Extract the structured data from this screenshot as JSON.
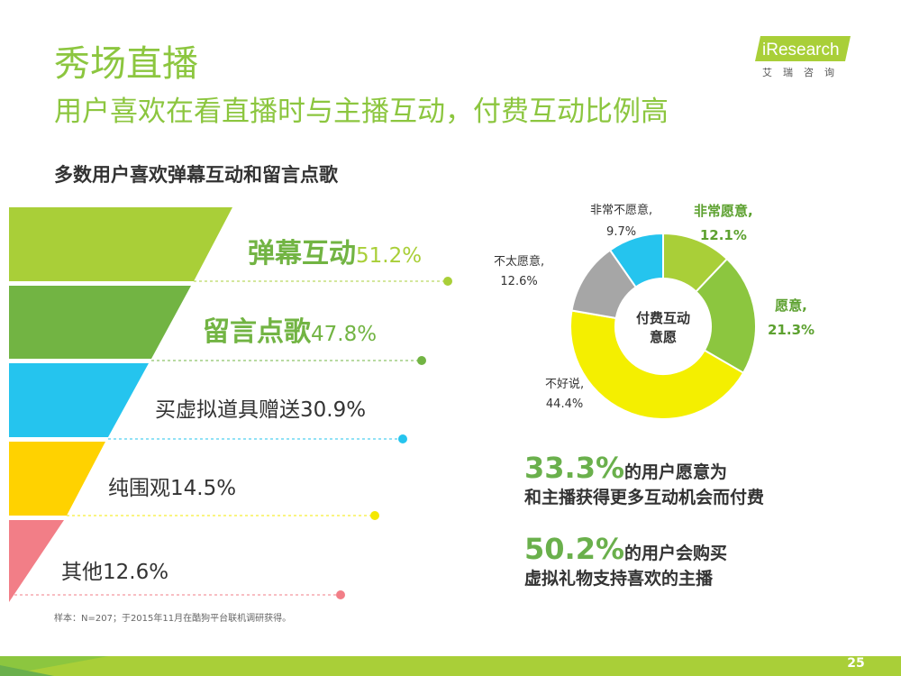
{
  "header": {
    "title": "秀场直播",
    "subtitle": "用户喜欢在看直播时与主播互动，付费互动比例高"
  },
  "logo": {
    "brand": "iResearch",
    "sub": "艾瑞咨询"
  },
  "left_heading": "多数用户喜欢弹幕互动和留言点歌",
  "funnel": [
    {
      "name": "弹幕互动",
      "value": "51.2%",
      "color": "#a9cf38",
      "dot": "#a9cf38"
    },
    {
      "name": "留言点歌",
      "value": "47.8%",
      "color": "#72b443",
      "dot": "#72b443"
    },
    {
      "name": "买虚拟道具赠送",
      "value": "30.9%",
      "color": "#25c4ee",
      "dot": "#25c4ee"
    },
    {
      "name": "纯围观",
      "value": "14.5%",
      "color": "#ffd200",
      "dot": "#f4e800"
    },
    {
      "name": "其他",
      "value": "12.6%",
      "color": "#f27e87",
      "dot": "#f27e87"
    }
  ],
  "donut": {
    "center_line1": "付费互动",
    "center_line2": "意愿",
    "slices": [
      {
        "name": "非常愿意,",
        "value": "12.1%",
        "color": "#a9cf38"
      },
      {
        "name": "愿意,",
        "value": "21.3%",
        "color": "#8cc63f"
      },
      {
        "name": "不好说,",
        "value": "44.4%",
        "color": "#f4ef00"
      },
      {
        "name": "不太愿意,",
        "value": "12.6%",
        "color": "#a6a6a6"
      },
      {
        "name": "非常不愿意,",
        "value": "9.7%",
        "color": "#25c4ee"
      }
    ]
  },
  "stats": [
    {
      "number": "33.3%",
      "line1_rest": "的用户愿意为",
      "line2": "和主播获得更多互动机会而付费"
    },
    {
      "number": "50.2%",
      "line1_rest": "的用户会购买",
      "line2": "虚拟礼物支持喜欢的主播"
    }
  ],
  "footnote": "样本：N=207；于2015年11月在酷狗平台联机调研获得。",
  "page_number": "25",
  "chart_data": [
    {
      "type": "bar",
      "title": "多数用户喜欢弹幕互动和留言点歌",
      "categories": [
        "弹幕互动",
        "留言点歌",
        "买虚拟道具赠送",
        "纯围观",
        "其他"
      ],
      "values": [
        51.2,
        47.8,
        30.9,
        14.5,
        12.6
      ]
    },
    {
      "type": "pie",
      "title": "付费互动意愿",
      "categories": [
        "非常愿意",
        "愿意",
        "不好说",
        "不太愿意",
        "非常不愿意"
      ],
      "values": [
        12.1,
        21.3,
        44.4,
        12.6,
        9.7
      ]
    }
  ]
}
